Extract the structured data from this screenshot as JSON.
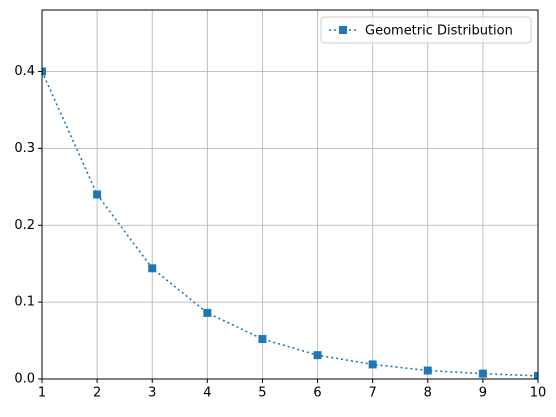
{
  "chart_data": {
    "type": "line",
    "x": [
      1,
      2,
      3,
      4,
      5,
      6,
      7,
      8,
      9,
      10
    ],
    "series": [
      {
        "name": "Geometric Distribution",
        "color": "#1f77b4",
        "values": [
          0.4,
          0.24,
          0.144,
          0.086,
          0.052,
          0.031,
          0.019,
          0.011,
          0.007,
          0.004
        ]
      }
    ],
    "xlim": [
      1,
      10
    ],
    "xticks": [
      1,
      2,
      3,
      4,
      5,
      6,
      7,
      8,
      9,
      10
    ],
    "ylim": [
      0,
      0.48
    ],
    "yticks": [
      {
        "value": 0,
        "label": "0.0"
      },
      0.1,
      0.2,
      0.3,
      0.4
    ],
    "grid": true,
    "legend": "upper right",
    "linestyle": "dotted",
    "marker": "square"
  }
}
